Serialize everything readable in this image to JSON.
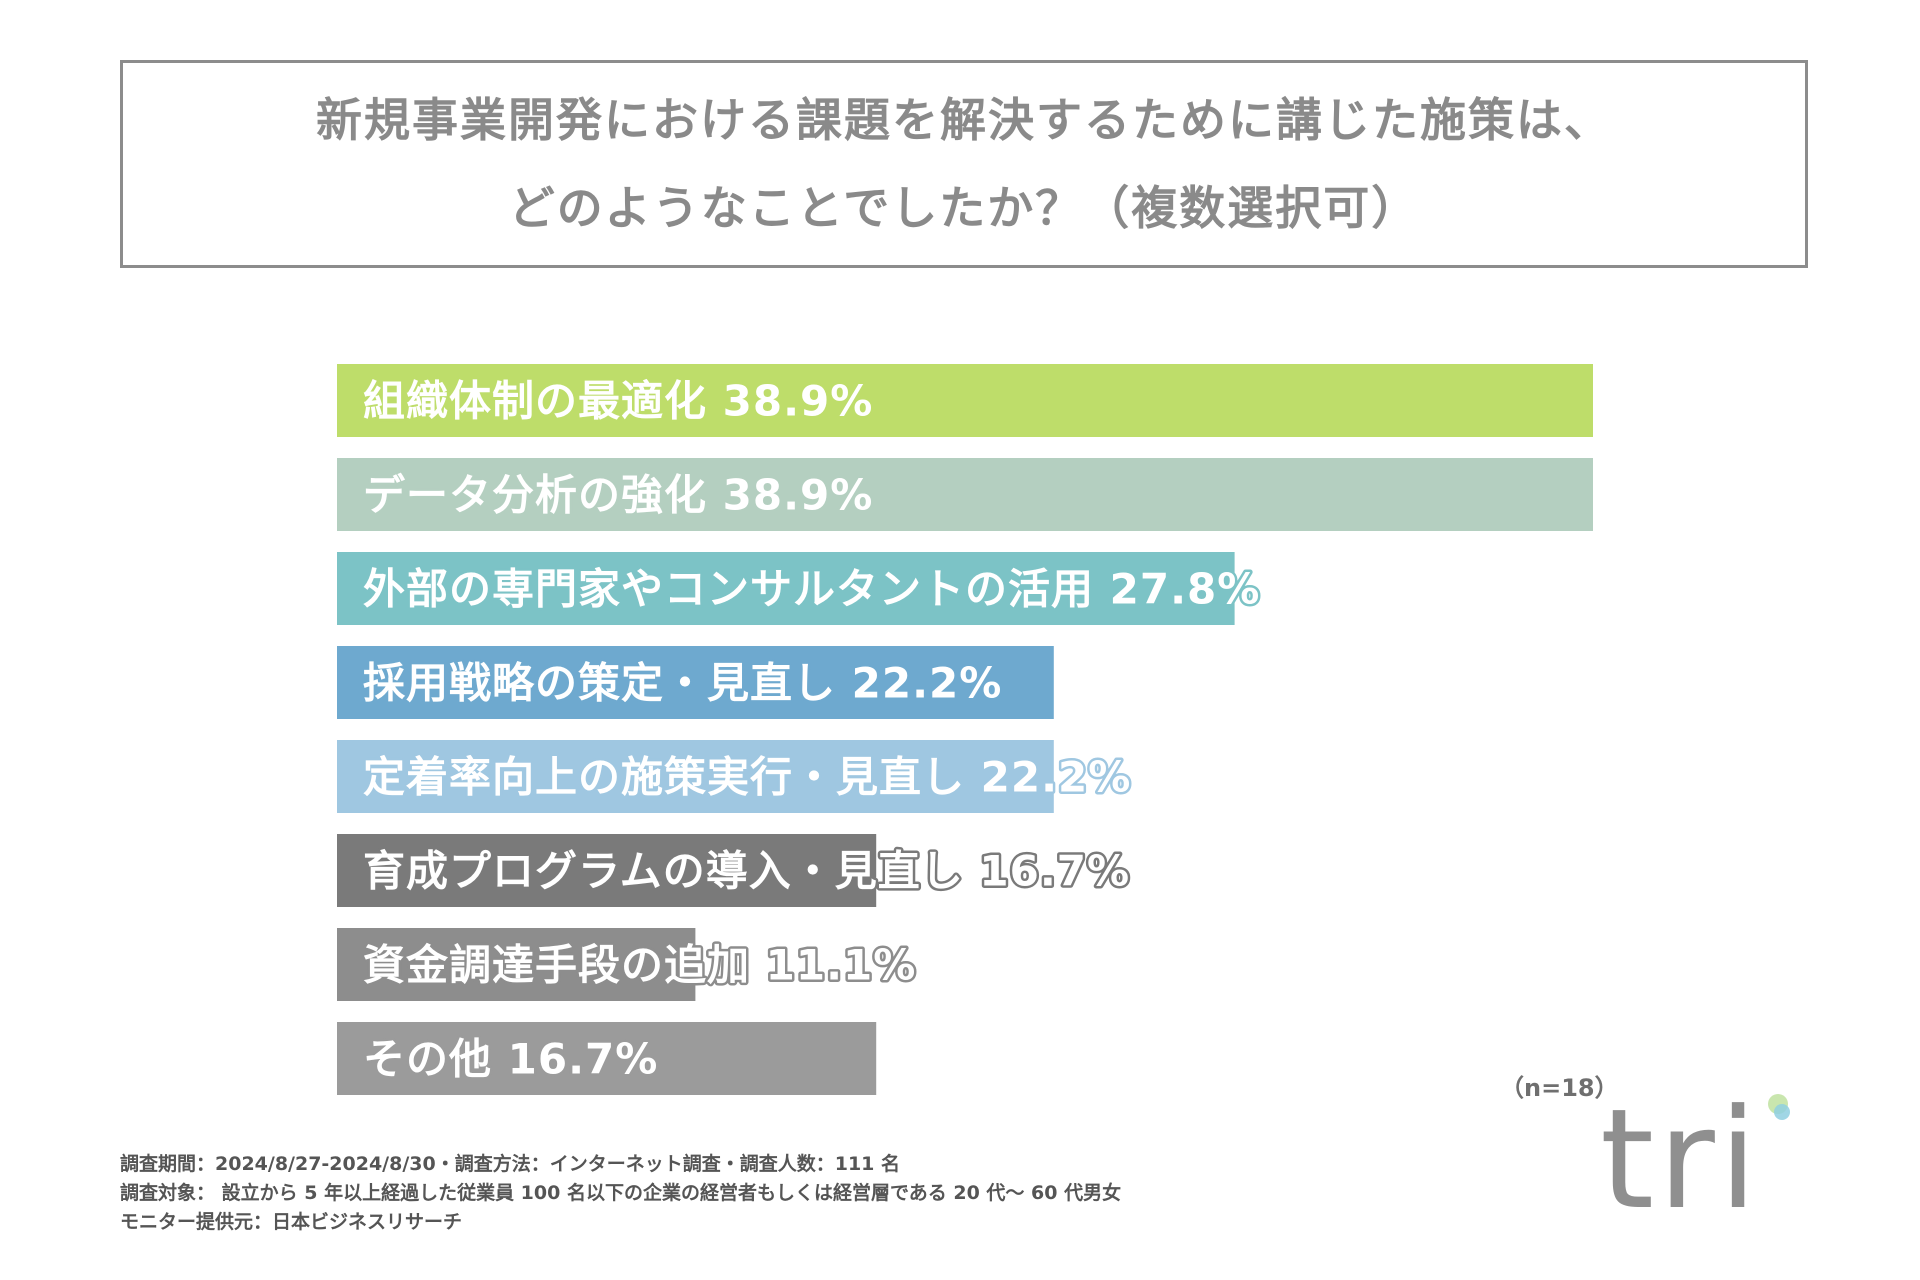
{
  "chart_data": {
    "type": "bar",
    "orientation": "horizontal",
    "title": "新規事業開発における課題を解決するために講じた施策は、どのようなことでしたか？（複数選択可）",
    "title_lines": [
      "新規事業開発における課題を解決するために講じた施策は、",
      "どのようなことでしたか？（複数選択可）"
    ],
    "categories": [
      "組織体制の最適化",
      "データ分析の強化",
      "外部の専門家やコンサルタントの活用",
      "採用戦略の策定・見直し",
      "定着率向上の施策実行・見直し",
      "育成プログラムの導入・見直し",
      "資金調達手段の追加",
      "その他"
    ],
    "values": [
      38.9,
      38.9,
      27.8,
      22.2,
      22.2,
      16.7,
      11.1,
      16.7
    ],
    "value_labels": [
      "38.9%",
      "38.9%",
      "27.8%",
      "22.2%",
      "22.2%",
      "16.7%",
      "11.1%",
      "16.7%"
    ],
    "colors": [
      "#bedd6a",
      "#b4cfc0",
      "#7cc3c6",
      "#6ea9cf",
      "#9fc7e1",
      "#7a7a7a",
      "#8d8d8d",
      "#9b9b9b"
    ],
    "label_outline_colors": [
      "#bedd6a",
      "#b4cfc0",
      "#7cc3c6",
      "#6ea9cf",
      "#9fc7e1",
      "#7a7a7a",
      "#8d8d8d",
      "#9b9b9b"
    ],
    "xlim": [
      0,
      38.9
    ],
    "xlabel": "",
    "ylabel": "",
    "n_label": "（n=18）"
  },
  "footnotes": [
    "調査期間：2024/8/27-2024/8/30・調査方法：インターネット調査・調査人数：111 名",
    "調査対象： 設立から 5 年以上経過した従業員 100 名以下の企業の経営者もしくは経営層である 20 代～ 60 代男女",
    "モニター提供元：日本ビジネスリサーチ"
  ],
  "logo": {
    "text": "tri",
    "dot_colors": [
      "#c3e3a5",
      "#8fcfe0"
    ]
  }
}
